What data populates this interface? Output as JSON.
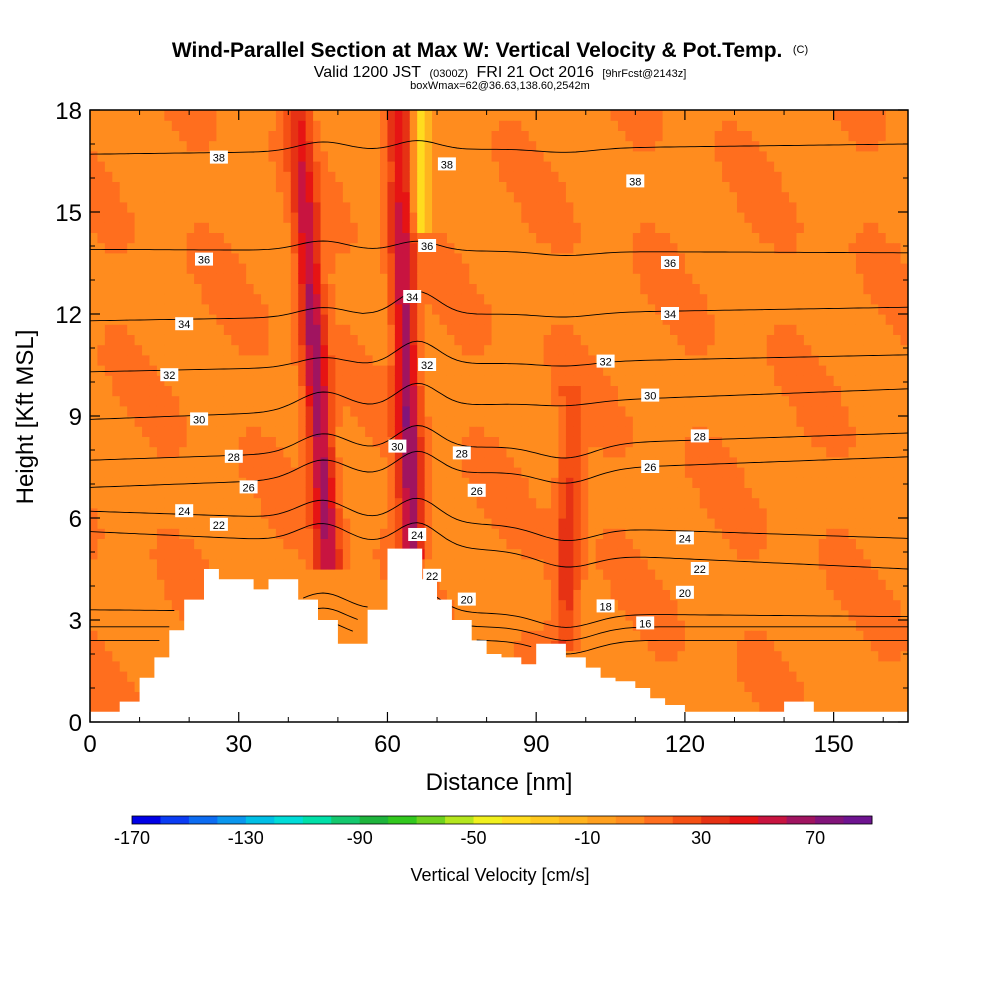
{
  "chart_data": {
    "type": "heatmap",
    "title": "Wind-Parallel Section at Max W: Vertical Velocity & Pot.Temp.",
    "title_suffix": "(C)",
    "subtitle_parts": [
      "Valid 1200 JST",
      "(0300Z)",
      "FRI 21 Oct 2016",
      "[9hrFcst@2143z]"
    ],
    "subtitle2": "boxWmax=62@36.63,138.60,2542m",
    "xlabel": "Distance [nm]",
    "ylabel": "Height [Kft MSL]",
    "xlim": [
      0,
      165
    ],
    "ylim": [
      0,
      18
    ],
    "xticks": [
      0,
      30,
      60,
      90,
      120,
      150
    ],
    "yticks": [
      0,
      3,
      6,
      9,
      12,
      15,
      18
    ],
    "grid": false,
    "colorbar": {
      "title": "Vertical Velocity [cm/s]",
      "tick_labels": [
        "-170",
        "-130",
        "-90",
        "-50",
        "-10",
        "30",
        "70"
      ],
      "colors": [
        "#0000e6",
        "#0b3cf4",
        "#0d6cf2",
        "#0a96ee",
        "#00bfe6",
        "#00dcd8",
        "#00e0a8",
        "#14c86e",
        "#1eb43c",
        "#32c81e",
        "#6ed21e",
        "#b4e61e",
        "#f0f01e",
        "#ffdc1e",
        "#ffc81e",
        "#ffb41e",
        "#ffa01e",
        "#ff8c1e",
        "#ff6e1e",
        "#f55014",
        "#e63214",
        "#e61414",
        "#c81440",
        "#a01460",
        "#82147a",
        "#6e1490"
      ]
    },
    "updraft_bands": [
      {
        "name": "left",
        "base_x": 48,
        "base_y": 5.0,
        "top_x": 42,
        "top_y": 18,
        "w_max": 62
      },
      {
        "name": "central",
        "base_x": 65,
        "base_y": 5.2,
        "top_x": 62,
        "top_y": 18,
        "w_max": 62
      },
      {
        "name": "right",
        "base_x": 96,
        "base_y": 2.5,
        "top_x": 97,
        "top_y": 10,
        "w_max": 30
      }
    ],
    "downdraft_core": {
      "x": 67,
      "y_range": [
        14.5,
        18
      ],
      "w_min": -40
    },
    "terrain_profile": {
      "x": [
        0,
        3,
        6,
        7,
        10,
        13,
        16,
        19,
        20,
        23,
        26,
        30,
        33,
        36,
        40,
        42,
        46,
        50,
        52,
        56,
        60,
        63,
        65,
        67,
        70,
        73,
        77,
        80,
        83,
        87,
        90,
        93,
        96,
        100,
        103,
        106,
        110,
        113,
        116,
        120,
        123,
        126,
        130,
        133,
        136,
        140,
        143,
        146,
        150,
        153,
        156,
        160,
        165
      ],
      "h": [
        0.3,
        0.3,
        0.6,
        0.6,
        1.3,
        1.9,
        2.7,
        3.6,
        3.6,
        4.5,
        4.2,
        4.2,
        3.9,
        4.2,
        4.2,
        3.6,
        3.0,
        2.3,
        2.3,
        3.3,
        5.1,
        5.1,
        5.1,
        4.2,
        3.6,
        3.0,
        2.4,
        2.0,
        1.9,
        1.7,
        2.3,
        2.3,
        1.9,
        1.6,
        1.3,
        1.2,
        1.0,
        0.7,
        0.5,
        0.3,
        0.3,
        0.3,
        0.3,
        0.3,
        0.3,
        0.6,
        0.6,
        0.3,
        0.3,
        0.3,
        0.3,
        0.3,
        0.3
      ]
    },
    "theta_contours": [
      {
        "value": 16,
        "y_left": 2.4,
        "y_right": 2.4
      },
      {
        "value": 18,
        "y_left": 2.8,
        "y_right": 2.8
      },
      {
        "value": 20,
        "y_left": 3.3,
        "y_right": 3.1
      },
      {
        "value": 22,
        "y_left": 5.6,
        "y_right": 4.5
      },
      {
        "value": 24,
        "y_left": 6.2,
        "y_right": 5.4
      },
      {
        "value": 26,
        "y_left": 6.9,
        "y_right": 7.8
      },
      {
        "value": 28,
        "y_left": 7.7,
        "y_right": 8.5
      },
      {
        "value": 30,
        "y_left": 8.9,
        "y_right": 9.8
      },
      {
        "value": 32,
        "y_left": 10.3,
        "y_right": 10.8
      },
      {
        "value": 34,
        "y_left": 11.8,
        "y_right": 12.2
      },
      {
        "value": 36,
        "y_left": 13.9,
        "y_right": 13.8
      },
      {
        "value": 38,
        "y_left": 16.7,
        "y_right": 17.0
      }
    ],
    "contour_labels": [
      {
        "text": "38",
        "x": 26,
        "y": 16.6
      },
      {
        "text": "38",
        "x": 72,
        "y": 16.4
      },
      {
        "text": "38",
        "x": 110,
        "y": 15.9
      },
      {
        "text": "36",
        "x": 23,
        "y": 13.6
      },
      {
        "text": "36",
        "x": 68,
        "y": 14.0
      },
      {
        "text": "36",
        "x": 117,
        "y": 13.5
      },
      {
        "text": "34",
        "x": 19,
        "y": 11.7
      },
      {
        "text": "34",
        "x": 65,
        "y": 12.5
      },
      {
        "text": "34",
        "x": 117,
        "y": 12.0
      },
      {
        "text": "32",
        "x": 16,
        "y": 10.2
      },
      {
        "text": "32",
        "x": 68,
        "y": 10.5
      },
      {
        "text": "32",
        "x": 104,
        "y": 10.6
      },
      {
        "text": "30",
        "x": 22,
        "y": 8.9
      },
      {
        "text": "30",
        "x": 62,
        "y": 8.1
      },
      {
        "text": "30",
        "x": 113,
        "y": 9.6
      },
      {
        "text": "28",
        "x": 29,
        "y": 7.8
      },
      {
        "text": "28",
        "x": 75,
        "y": 7.9
      },
      {
        "text": "28",
        "x": 123,
        "y": 8.4
      },
      {
        "text": "26",
        "x": 32,
        "y": 6.9
      },
      {
        "text": "26",
        "x": 78,
        "y": 6.8
      },
      {
        "text": "26",
        "x": 113,
        "y": 7.5
      },
      {
        "text": "24",
        "x": 19,
        "y": 6.2
      },
      {
        "text": "24",
        "x": 66,
        "y": 5.5
      },
      {
        "text": "24",
        "x": 120,
        "y": 5.4
      },
      {
        "text": "22",
        "x": 26,
        "y": 5.8
      },
      {
        "text": "22",
        "x": 69,
        "y": 4.3
      },
      {
        "text": "22",
        "x": 123,
        "y": 4.5
      },
      {
        "text": "20",
        "x": 76,
        "y": 3.6
      },
      {
        "text": "20",
        "x": 120,
        "y": 3.8
      },
      {
        "text": "18",
        "x": 104,
        "y": 3.4
      },
      {
        "text": "16",
        "x": 112,
        "y": 2.9
      }
    ]
  }
}
